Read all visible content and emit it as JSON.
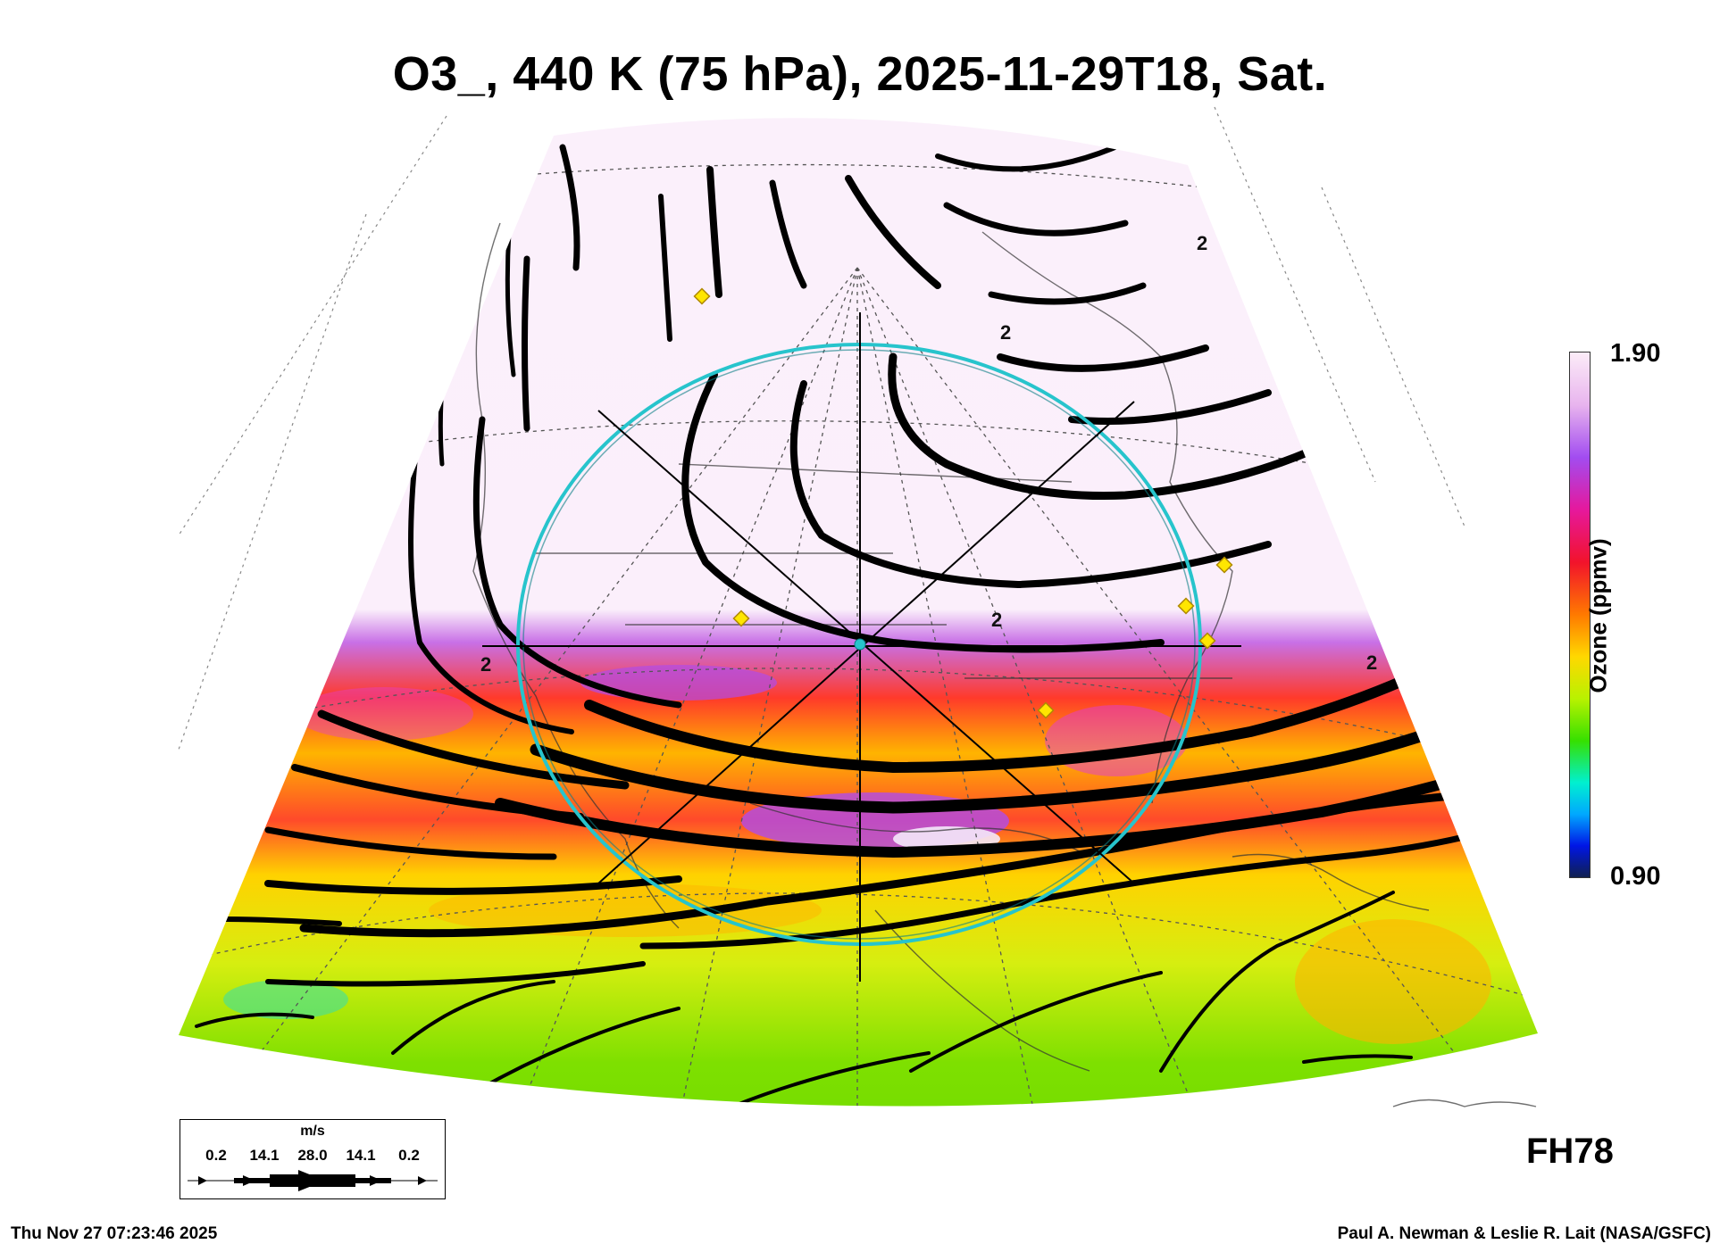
{
  "title": "O3_, 440 K (75 hPa), 2025-11-29T18, Sat.",
  "colorbar": {
    "max_label": "1.90",
    "min_label": "0.90",
    "title": "Ozone (ppmv)"
  },
  "wind_key": {
    "unit": "m/s",
    "values": [
      "0.2",
      "14.1",
      "28.0",
      "14.1",
      "0.2"
    ]
  },
  "forecast_hour": "FH78",
  "timestamp": "Thu Nov 27 07:23:46 2025",
  "credit": "Paul A. Newman & Leslie R. Lait (NASA/GSFC)",
  "contour_labels": [
    "2",
    "2",
    "2",
    "2",
    "2"
  ],
  "colors": {
    "low_ozone_green": "#7ee000",
    "mid_ozone_yellow": "#ffd800",
    "high_ozone_red": "#ff2a2a",
    "high_ozone_magenta": "#e03cd8",
    "polar_pale": "#fbf0fb",
    "circle_cyan": "#27c4cc",
    "marker_yellow": "#ffe600"
  }
}
